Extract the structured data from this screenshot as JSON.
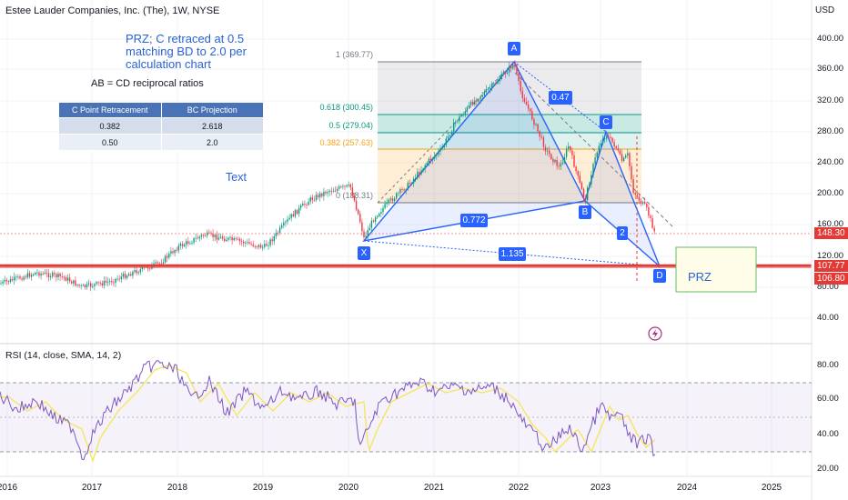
{
  "header": {
    "title": "Estee Lauder Companies, Inc. (The), 1W, NYSE",
    "currency": "USD"
  },
  "annotations": {
    "note": "PRZ; C retraced at 0.5 matching BD to 2.0 per calculation chart",
    "ratio_heading": "AB = CD reciprocal ratios",
    "text_label": "Text",
    "prz_label": "PRZ"
  },
  "ratio_table": {
    "headers": [
      "C Point Retracement",
      "BC Projection"
    ],
    "rows": [
      [
        "0.382",
        "2.618"
      ],
      [
        "0.50",
        "2.0"
      ]
    ]
  },
  "pattern": {
    "points": {
      "X": "X",
      "A": "A",
      "B": "B",
      "C": "C",
      "D": "D"
    },
    "ratios": {
      "xb": "0.772",
      "ac": "0.47",
      "xd": "1.135",
      "cd": "2"
    }
  },
  "fib_levels": [
    {
      "label": "1 (369.77)",
      "color": "#787b86"
    },
    {
      "label": "0.618 (300.45)",
      "color": "#089981"
    },
    {
      "label": "0.5 (279.04)",
      "color": "#089981"
    },
    {
      "label": "0.382 (257.63)",
      "color": "#f7a21b"
    },
    {
      "label": "0 (188.31)",
      "color": "#787b86"
    }
  ],
  "price_axis": {
    "ticks": [
      "400.00",
      "360.00",
      "320.00",
      "280.00",
      "240.00",
      "200.00",
      "160.00",
      "120.00",
      "80.00",
      "40.00"
    ],
    "badges": {
      "last_price": "148.30",
      "level_1": "107.77",
      "level_2": "106.80"
    }
  },
  "rsi": {
    "title": "RSI (14, close, SMA, 14, 2)",
    "ticks": [
      "80.00",
      "60.00",
      "40.00",
      "20.00"
    ]
  },
  "time_axis": {
    "labels": [
      "2016",
      "2017",
      "2018",
      "2019",
      "2020",
      "2021",
      "2022",
      "2023",
      "2024",
      "2025"
    ]
  },
  "colors": {
    "up": "#089981",
    "down": "#f23645",
    "pattern": "#2962ff",
    "accent_text": "#2a62d6",
    "support_line": "#e53935",
    "rsi_line": "#7e57c2",
    "rsi_ma": "#f5e663",
    "prz_box_border": "#66bb6a",
    "prz_box_fill": "#fffde7"
  }
}
